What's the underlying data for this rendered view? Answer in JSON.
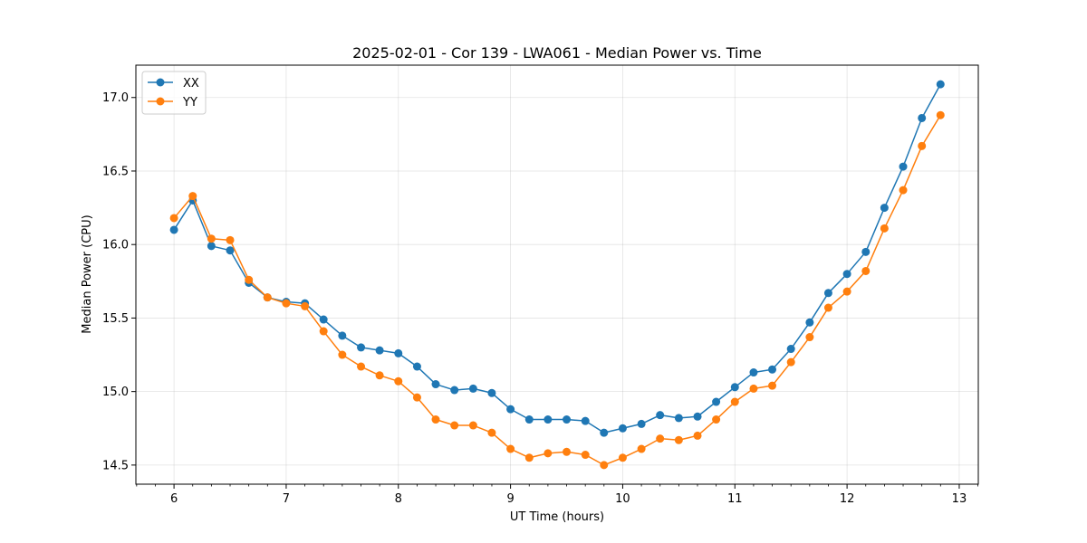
{
  "chart_data": {
    "type": "line",
    "title": "2025-02-01 - Cor 139 - LWA061 - Median Power vs. Time",
    "xlabel": "UT Time (hours)",
    "ylabel": "Median Power (CPU)",
    "xlim": [
      5.66,
      13.17
    ],
    "ylim": [
      14.37,
      17.22
    ],
    "xticks": [
      6,
      7,
      8,
      9,
      10,
      11,
      12,
      13
    ],
    "yticks": [
      14.5,
      15.0,
      15.5,
      16.0,
      16.5,
      17.0
    ],
    "grid": true,
    "legend_position": "top-left",
    "x": [
      6.0,
      6.167,
      6.333,
      6.5,
      6.667,
      6.833,
      7.0,
      7.167,
      7.333,
      7.5,
      7.667,
      7.833,
      8.0,
      8.167,
      8.333,
      8.5,
      8.667,
      8.833,
      9.0,
      9.167,
      9.333,
      9.5,
      9.667,
      9.833,
      10.0,
      10.167,
      10.333,
      10.5,
      10.667,
      10.833,
      11.0,
      11.167,
      11.333,
      11.5,
      11.667,
      11.833,
      12.0,
      12.167,
      12.333,
      12.5,
      12.667,
      12.833
    ],
    "series": [
      {
        "name": "XX",
        "color": "#1f77b4",
        "values": [
          16.1,
          16.3,
          15.99,
          15.96,
          15.74,
          15.64,
          15.61,
          15.6,
          15.49,
          15.38,
          15.3,
          15.28,
          15.26,
          15.17,
          15.05,
          15.01,
          15.02,
          14.99,
          14.88,
          14.81,
          14.81,
          14.81,
          14.8,
          14.72,
          14.75,
          14.78,
          14.84,
          14.82,
          14.83,
          14.93,
          15.03,
          15.13,
          15.15,
          15.29,
          15.47,
          15.67,
          15.8,
          15.95,
          16.25,
          16.53,
          16.86,
          17.09
        ]
      },
      {
        "name": "YY",
        "color": "#ff7f0e",
        "values": [
          16.18,
          16.33,
          16.04,
          16.03,
          15.76,
          15.64,
          15.6,
          15.58,
          15.41,
          15.25,
          15.17,
          15.11,
          15.07,
          14.96,
          14.81,
          14.77,
          14.77,
          14.72,
          14.61,
          14.55,
          14.58,
          14.59,
          14.57,
          14.5,
          14.55,
          14.61,
          14.68,
          14.67,
          14.7,
          14.81,
          14.93,
          15.02,
          15.04,
          15.2,
          15.37,
          15.57,
          15.68,
          15.82,
          16.11,
          16.37,
          16.67,
          16.88
        ]
      }
    ]
  }
}
